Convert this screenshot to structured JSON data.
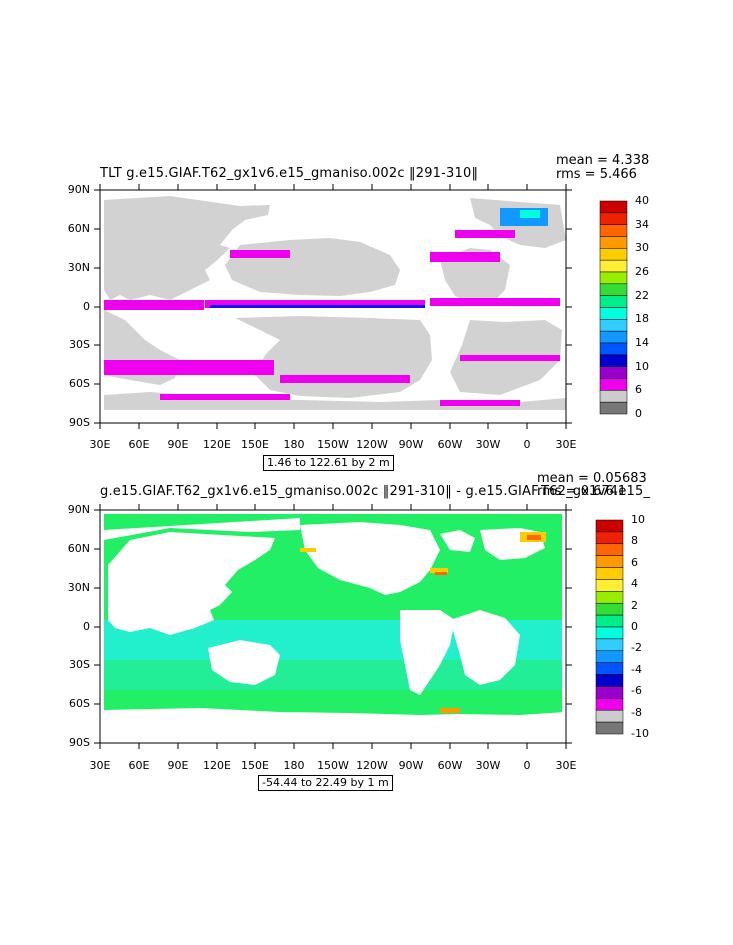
{
  "panels": [
    {
      "title": "TLT g.e15.GIAF.T62_gx1v6.e15_gmaniso.002c ‖291-310‖",
      "mean": "mean = 4.338",
      "rms": "rms = 5.466",
      "range": "1.46 to 122.61 by 2 m",
      "colorbar_labels": [
        "40",
        "34",
        "30",
        "26",
        "22",
        "18",
        "14",
        "10",
        "6",
        "0"
      ],
      "colorbar_colors": [
        "#cc0000",
        "#ee2200",
        "#ff6600",
        "#ff9900",
        "#ffcc00",
        "#ffee33",
        "#99ee00",
        "#33dd33",
        "#00ee88",
        "#00ffdd",
        "#33ccff",
        "#1199ff",
        "#0055ff",
        "#0000cc",
        "#9900cc",
        "#ee00ee",
        "#cccccc",
        "#777777"
      ]
    },
    {
      "title": "g.e15.GIAF.T62_gx1v6.e15_gmaniso.002c ‖291-310‖ - g.e15.GIAF.T62_gx1v6.e15_",
      "mean": "mean = 0.05683",
      "rms": "rms = 0.6741",
      "range": "-54.44 to 22.49 by 1 m",
      "colorbar_labels": [
        "10",
        "8",
        "6",
        "4",
        "2",
        "0",
        "-2",
        "-4",
        "-6",
        "-8",
        "-10"
      ],
      "colorbar_colors": [
        "#cc0000",
        "#ee2200",
        "#ff6600",
        "#ff9900",
        "#ffcc00",
        "#ffee33",
        "#99ee00",
        "#33dd33",
        "#00ee88",
        "#00ffdd",
        "#33ccff",
        "#1199ff",
        "#0055ff",
        "#0000cc",
        "#9900cc",
        "#ee00ee",
        "#cccccc",
        "#777777"
      ]
    }
  ],
  "axes": {
    "y_labels": [
      "90N",
      "60N",
      "30N",
      "0",
      "30S",
      "60S",
      "90S"
    ],
    "x_labels": [
      "30E",
      "60E",
      "90E",
      "120E",
      "150E",
      "180",
      "150W",
      "120W",
      "90W",
      "60W",
      "30W",
      "0",
      "30E"
    ]
  },
  "colors": {
    "land_top": "#d2d2d2",
    "ocean_bottom": "#22ee66",
    "ocean_bottom_alt": "#22eedd",
    "magenta": "#ee00ee",
    "blue": "#1111ee"
  }
}
